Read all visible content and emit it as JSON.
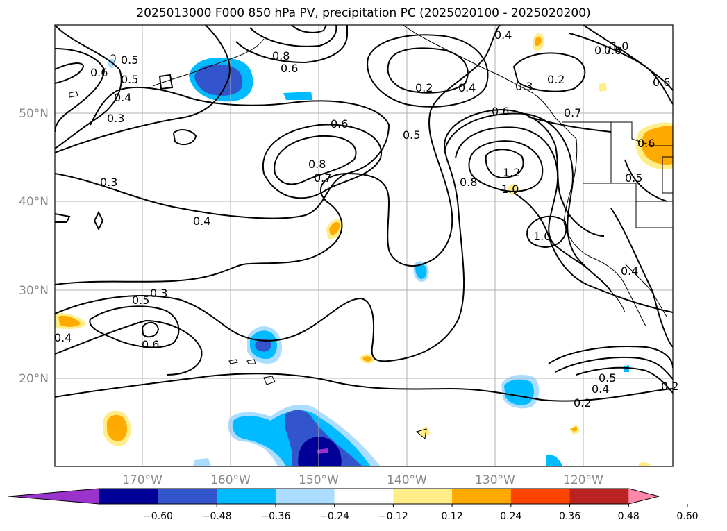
{
  "title": "2025013000 F000 850 hPa PV, precipitation PC (2025020100 - 2025020200)",
  "map": {
    "projection": "PlateCarree",
    "lon_range": [
      -180,
      -110
    ],
    "lat_range": [
      10,
      60
    ],
    "lat_ticks": [
      "20°N",
      "30°N",
      "40°N",
      "50°N"
    ],
    "lon_ticks": [
      "170°W",
      "160°W",
      "150°W",
      "140°W",
      "130°W",
      "120°W"
    ],
    "grid": true
  },
  "contour_labels": [
    "0.4",
    "0.8",
    "1.0",
    "0.7",
    "0.6",
    "0.5",
    "0.6",
    "0.8",
    "0.6",
    "0.2",
    "0.4",
    "0.3",
    "0.2",
    "0.6",
    "0.7",
    "0.5",
    "0.4",
    "0.6",
    "0.3",
    "0.5",
    "0.6",
    "0.8",
    "0.7",
    "1.2",
    "1.0",
    "0.8",
    "0.5",
    "0.3",
    "0.4",
    "1.0",
    "0.4",
    "0.3",
    "0.5",
    "0.4",
    "0.6",
    "0.2",
    "0.5",
    "0.4",
    "0.2"
  ],
  "colorbar": {
    "ticks": [
      "−0.60",
      "−0.48",
      "−0.36",
      "−0.24",
      "−0.12",
      "0.12",
      "0.24",
      "0.36",
      "0.48",
      "0.60"
    ],
    "colors": [
      "#9933cc",
      "#000099",
      "#3355cc",
      "#00bbff",
      "#aaddff",
      "#ffffff",
      "#ffee88",
      "#ffaa00",
      "#ff4400",
      "#bb2222",
      "#ff88aa"
    ],
    "extend": "both"
  }
}
